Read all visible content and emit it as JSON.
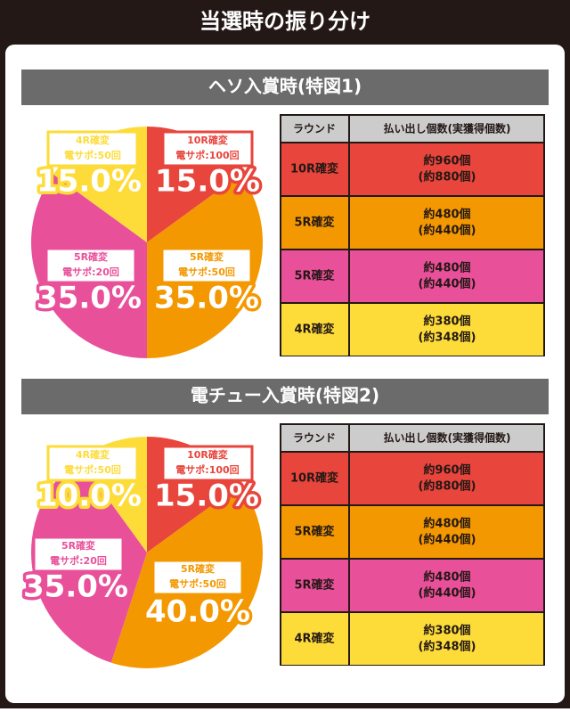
{
  "title": "当選時の振り分け",
  "chart_data": [
    {
      "type": "pie",
      "title": "ヘソ入賞時(特図1)",
      "categories": [
        "10R確変",
        "5R確変",
        "5R確変",
        "4R確変"
      ],
      "sublabels": [
        "電サポ:100回",
        "電サポ:50回",
        "電サポ:20回",
        "電サポ:50回"
      ],
      "values": [
        15,
        35,
        35,
        15
      ],
      "value_labels": [
        "15.0%",
        "35.0%",
        "35.0%",
        "15.0%"
      ],
      "colors": [
        "#e8453c",
        "#f39800",
        "#e8509a",
        "#fddc3a"
      ]
    },
    {
      "type": "pie",
      "title": "電チュー入賞時(特図2)",
      "categories": [
        "10R確変",
        "5R確変",
        "5R確変",
        "4R確変"
      ],
      "sublabels": [
        "電サポ:100回",
        "電サポ:50回",
        "電サポ:20回",
        "電サポ:50回"
      ],
      "values": [
        15,
        40,
        35,
        10
      ],
      "value_labels": [
        "15.0%",
        "40.0%",
        "35.0%",
        "10.0%"
      ],
      "colors": [
        "#e8453c",
        "#f39800",
        "#e8509a",
        "#fddc3a"
      ]
    }
  ],
  "tables": [
    {
      "header": [
        "ラウンド",
        "払い出し個数(実獲得個数)"
      ],
      "rows": [
        [
          "10R確変",
          "約960個",
          "(約880個)"
        ],
        [
          "5R確変",
          "約480個",
          "(約440個)"
        ],
        [
          "5R確変",
          "約480個",
          "(約440個)"
        ],
        [
          "4R確変",
          "約380個",
          "(約348個)"
        ]
      ],
      "colors": [
        "#e8453c",
        "#f39800",
        "#e8509a",
        "#fddc3a"
      ]
    },
    {
      "header": [
        "ラウンド",
        "払い出し個数(実獲得個数)"
      ],
      "rows": [
        [
          "10R確変",
          "約960個",
          "(約880個)"
        ],
        [
          "5R確変",
          "約480個",
          "(約440個)"
        ],
        [
          "5R確変",
          "約480個",
          "(約440個)"
        ],
        [
          "4R確変",
          "約380個",
          "(約348個)"
        ]
      ],
      "colors": [
        "#e8453c",
        "#f39800",
        "#e8509a",
        "#fddc3a"
      ]
    }
  ]
}
